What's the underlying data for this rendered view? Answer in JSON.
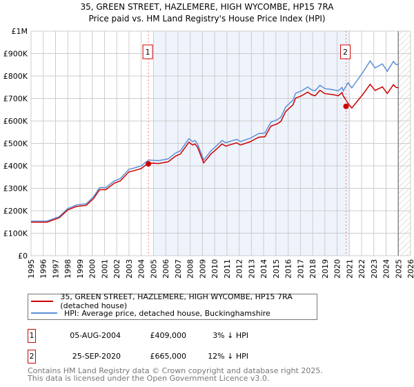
{
  "title": "35, GREEN STREET, HAZLEMERE, HIGH WYCOMBE, HP15 7RA",
  "subtitle": "Price paid vs. HM Land Registry's House Price Index (HPI)",
  "colors": {
    "property": "#cc0000",
    "hpi": "#5b8fd6",
    "shade": "#eff3fc",
    "grid": "#cccccc"
  },
  "chart_data": {
    "type": "line",
    "title": "35, GREEN STREET, HAZLEMERE, HIGH WYCOMBE, HP15 7RA — Price paid vs. HM Land Registry's House Price Index (HPI)",
    "xlim": [
      1995,
      2026
    ],
    "ylim": [
      0,
      1000000
    ],
    "x_ticks": [
      "1995",
      "1996",
      "1997",
      "1998",
      "1999",
      "2000",
      "2001",
      "2002",
      "2003",
      "2004",
      "2005",
      "2006",
      "2007",
      "2008",
      "2009",
      "2010",
      "2011",
      "2012",
      "2013",
      "2014",
      "2015",
      "2016",
      "2017",
      "2018",
      "2019",
      "2020",
      "2021",
      "2022",
      "2023",
      "2024",
      "2025",
      "2026"
    ],
    "y_ticks": [
      {
        "v": 0,
        "label": "£0"
      },
      {
        "v": 100000,
        "label": "£100K"
      },
      {
        "v": 200000,
        "label": "£200K"
      },
      {
        "v": 300000,
        "label": "£300K"
      },
      {
        "v": 400000,
        "label": "£400K"
      },
      {
        "v": 500000,
        "label": "£500K"
      },
      {
        "v": 600000,
        "label": "£600K"
      },
      {
        "v": 700000,
        "label": "£700K"
      },
      {
        "v": 800000,
        "label": "£800K"
      },
      {
        "v": 900000,
        "label": "£900K"
      },
      {
        "v": 1000000,
        "label": "£1M"
      }
    ],
    "grid": true,
    "shaded_range": [
      2005,
      2021
    ],
    "hatched_range": [
      2025,
      2026
    ],
    "series": [
      {
        "name": "HPI: Average price, detached house, Buckinghamshire",
        "x": [
          1995.0,
          1996.3,
          1997.3,
          1998.0,
          1998.7,
          1999.5,
          2000.1,
          2000.6,
          2001.1,
          2001.8,
          2002.3,
          2003.0,
          2003.4,
          2004.0,
          2004.6,
          2005.4,
          2006.2,
          2006.8,
          2007.2,
          2007.9,
          2008.2,
          2008.4,
          2008.6,
          2009.1,
          2009.7,
          2010.2,
          2010.6,
          2010.9,
          2011.8,
          2012.1,
          2012.9,
          2013.6,
          2014.1,
          2014.6,
          2015.1,
          2015.4,
          2015.8,
          2016.4,
          2016.6,
          2017.1,
          2017.6,
          2017.9,
          2018.2,
          2018.6,
          2019.0,
          2019.7,
          2020.1,
          2020.4,
          2020.5,
          2020.9,
          2021.2,
          2021.5,
          2022.1,
          2022.7,
          2023.1,
          2023.7,
          2024.1,
          2024.6,
          2024.8,
          2025.0
        ],
        "y": [
          154000,
          154000,
          174000,
          210000,
          226000,
          231000,
          262000,
          303000,
          303000,
          333000,
          344000,
          385000,
          390000,
          400000,
          426000,
          423000,
          431000,
          457000,
          467000,
          521000,
          508000,
          513000,
          498000,
          426000,
          467000,
          492000,
          513000,
          503000,
          518000,
          508000,
          523000,
          544000,
          546000,
          595000,
          605000,
          616000,
          662000,
          693000,
          723000,
          734000,
          751000,
          739000,
          734000,
          759000,
          744000,
          739000,
          734000,
          749000,
          734000,
          770000,
          747000,
          770000,
          816000,
          867000,
          836000,
          854000,
          821000,
          865000,
          852000,
          850000
        ]
      },
      {
        "name": "35, GREEN STREET, HAZLEMERE, HIGH WYCOMBE, HP15 7RA (detached house)",
        "ratio_to_hpi_before_sale2": 0.97,
        "ratio_to_hpi_after_sale2": 0.88
      }
    ],
    "sales": [
      {
        "label": "1",
        "x": 2004.59,
        "y": 409000
      },
      {
        "label": "2",
        "x": 2020.73,
        "y": 665000
      }
    ]
  },
  "legend": {
    "property": "35, GREEN STREET, HAZLEMERE, HIGH WYCOMBE, HP15 7RA (detached house)",
    "hpi": "HPI: Average price, detached house, Buckinghamshire"
  },
  "table": [
    {
      "num": "1",
      "date": "05-AUG-2004",
      "price": "£409,000",
      "hpi": "3% ↓ HPI"
    },
    {
      "num": "2",
      "date": "25-SEP-2020",
      "price": "£665,000",
      "hpi": "12% ↓ HPI"
    }
  ],
  "footer": [
    "Contains HM Land Registry data © Crown copyright and database right 2025.",
    "This data is licensed under the Open Government Licence v3.0."
  ]
}
